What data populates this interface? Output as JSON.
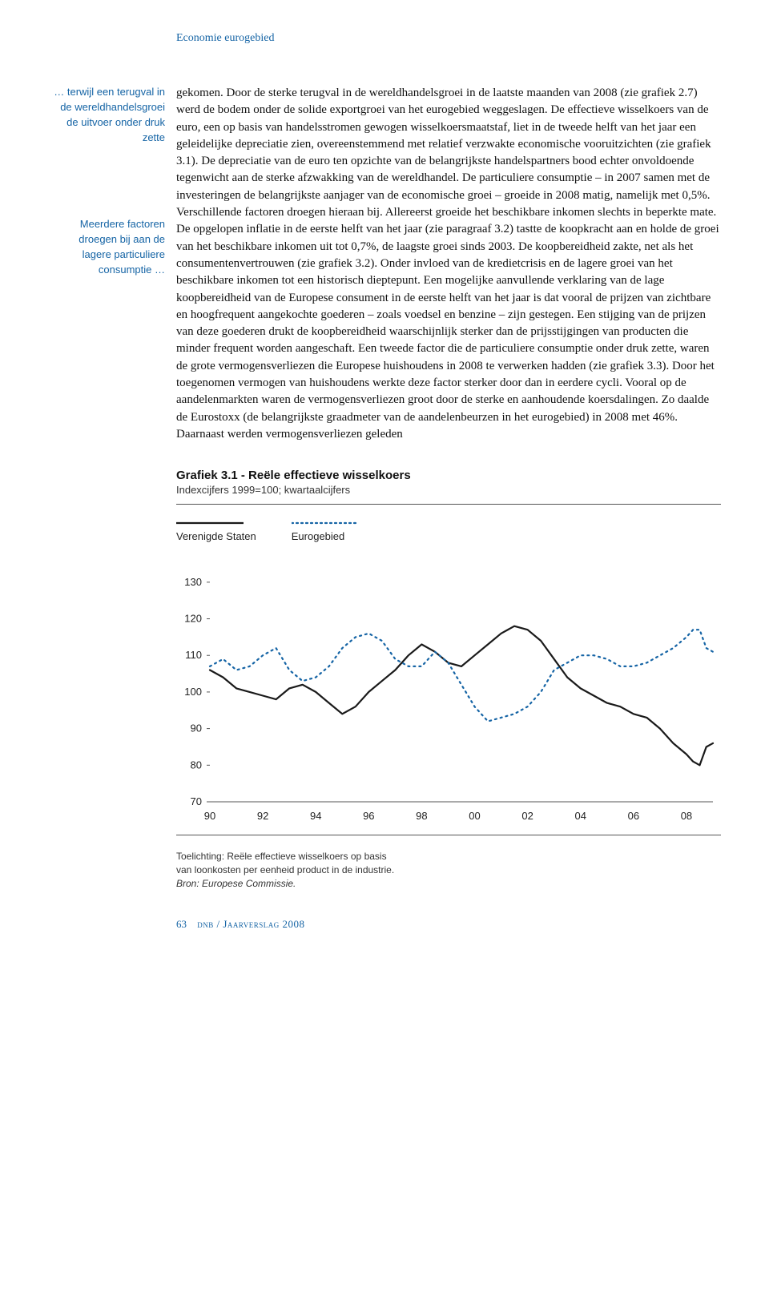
{
  "running_head": "Economie eurogebied",
  "margin": {
    "note1": "… terwijl een terugval in de wereldhandelsgroei de uitvoer onder druk zette",
    "note2": "Meerdere factoren droegen bij aan de lagere particuliere consumptie …"
  },
  "body_text": "gekomen. Door de sterke terugval in de wereldhandelsgroei in de laatste maanden van 2008 (zie grafiek 2.7) werd de bodem onder de solide exportgroei van het eurogebied weggeslagen. De effectieve wisselkoers van de euro, een op basis van handelsstromen gewogen wisselkoersmaatstaf, liet in de tweede helft van het jaar een geleidelijke depreciatie zien, overeenstemmend met relatief verzwakte economische vooruitzichten (zie grafiek 3.1). De depreciatie van de euro ten opzichte van de belangrijkste handelspartners bood echter onvoldoende tegenwicht aan de sterke afzwakking van de wereldhandel. De particuliere consumptie – in 2007 samen met de investeringen de belangrijkste aanjager van de economische groei – groeide in 2008 matig, namelijk met 0,5%. Verschillende factoren droegen hieraan bij. Allereerst groeide het beschikbare inkomen slechts in beperkte mate. De opgelopen inflatie in de eerste helft van het jaar (zie paragraaf 3.2) tastte de koopkracht aan en holde de groei van het beschikbare inkomen uit tot 0,7%, de laagste groei sinds 2003. De koopbereidheid zakte, net als het consumentenvertrouwen (zie grafiek 3.2). Onder invloed van de kredietcrisis en de lagere groei van het beschikbare inkomen tot een historisch dieptepunt. Een mogelijke aanvullende verklaring van de lage koopbereidheid van de Europese consument in de eerste helft van het jaar is dat vooral de prijzen van zichtbare en hoogfrequent aangekochte goederen – zoals voedsel en benzine – zijn gestegen. Een stijging van de prijzen van deze goederen drukt de koopbereidheid waarschijnlijk sterker dan de prijsstijgingen van producten die minder frequent worden aangeschaft. Een tweede factor die de particuliere consumptie onder druk zette, waren de grote vermogensverliezen die Europese huishoudens in 2008 te verwerken hadden (zie grafiek 3.3). Door het toegenomen vermogen van huishoudens werkte deze factor sterker door dan in eerdere cycli. Vooral op de aandelenmarkten waren de vermogensverliezen groot door de sterke en aanhoudende koersdalingen. Zo daalde de Eurostoxx (de belangrijkste graadmeter van de aandelenbeurzen in het eurogebied) in 2008 met 46%. Daarnaast werden vermogensverliezen geleden",
  "chart": {
    "type": "line",
    "title": "Grafiek 3.1 - Reële effectieve wisselkoers",
    "subtitle": "Indexcijfers 1999=100; kwartaalcijfers",
    "x_labels": [
      "90",
      "92",
      "94",
      "96",
      "98",
      "00",
      "02",
      "04",
      "06",
      "08"
    ],
    "y_ticks": [
      70,
      80,
      90,
      100,
      110,
      120,
      130
    ],
    "ylim": [
      70,
      135
    ],
    "xlim": [
      1990,
      2009
    ],
    "label_fontsize": 13,
    "tick_fontsize": 13,
    "background_color": "#ffffff",
    "axis_color": "#555555",
    "series": [
      {
        "name": "Verenigde Staten",
        "style": "solid",
        "color": "#1a1a1a",
        "line_width": 2.2,
        "points": [
          [
            1990.0,
            106
          ],
          [
            1990.5,
            104
          ],
          [
            1991.0,
            101
          ],
          [
            1991.5,
            100
          ],
          [
            1992.0,
            99
          ],
          [
            1992.5,
            98
          ],
          [
            1993.0,
            101
          ],
          [
            1993.5,
            102
          ],
          [
            1994.0,
            100
          ],
          [
            1994.5,
            97
          ],
          [
            1995.0,
            94
          ],
          [
            1995.5,
            96
          ],
          [
            1996.0,
            100
          ],
          [
            1996.5,
            103
          ],
          [
            1997.0,
            106
          ],
          [
            1997.5,
            110
          ],
          [
            1998.0,
            113
          ],
          [
            1998.5,
            111
          ],
          [
            1999.0,
            108
          ],
          [
            1999.5,
            107
          ],
          [
            2000.0,
            110
          ],
          [
            2000.5,
            113
          ],
          [
            2001.0,
            116
          ],
          [
            2001.5,
            118
          ],
          [
            2002.0,
            117
          ],
          [
            2002.5,
            114
          ],
          [
            2003.0,
            109
          ],
          [
            2003.5,
            104
          ],
          [
            2004.0,
            101
          ],
          [
            2004.5,
            99
          ],
          [
            2005.0,
            97
          ],
          [
            2005.5,
            96
          ],
          [
            2006.0,
            94
          ],
          [
            2006.5,
            93
          ],
          [
            2007.0,
            90
          ],
          [
            2007.5,
            86
          ],
          [
            2008.0,
            83
          ],
          [
            2008.25,
            81
          ],
          [
            2008.5,
            80
          ],
          [
            2008.75,
            85
          ],
          [
            2009.0,
            86
          ]
        ]
      },
      {
        "name": "Eurogebied",
        "style": "dotted",
        "color": "#1564a5",
        "line_width": 2.2,
        "points": [
          [
            1990.0,
            107
          ],
          [
            1990.5,
            109
          ],
          [
            1991.0,
            106
          ],
          [
            1991.5,
            107
          ],
          [
            1992.0,
            110
          ],
          [
            1992.5,
            112
          ],
          [
            1993.0,
            106
          ],
          [
            1993.5,
            103
          ],
          [
            1994.0,
            104
          ],
          [
            1994.5,
            107
          ],
          [
            1995.0,
            112
          ],
          [
            1995.5,
            115
          ],
          [
            1996.0,
            116
          ],
          [
            1996.5,
            114
          ],
          [
            1997.0,
            109
          ],
          [
            1997.5,
            107
          ],
          [
            1998.0,
            107
          ],
          [
            1998.5,
            111
          ],
          [
            1999.0,
            108
          ],
          [
            1999.5,
            102
          ],
          [
            2000.0,
            96
          ],
          [
            2000.5,
            92
          ],
          [
            2001.0,
            93
          ],
          [
            2001.5,
            94
          ],
          [
            2002.0,
            96
          ],
          [
            2002.5,
            100
          ],
          [
            2003.0,
            106
          ],
          [
            2003.5,
            108
          ],
          [
            2004.0,
            110
          ],
          [
            2004.5,
            110
          ],
          [
            2005.0,
            109
          ],
          [
            2005.5,
            107
          ],
          [
            2006.0,
            107
          ],
          [
            2006.5,
            108
          ],
          [
            2007.0,
            110
          ],
          [
            2007.5,
            112
          ],
          [
            2008.0,
            115
          ],
          [
            2008.25,
            117
          ],
          [
            2008.5,
            117
          ],
          [
            2008.75,
            112
          ],
          [
            2009.0,
            111
          ]
        ]
      }
    ],
    "note_line1": "Toelichting: Reële effectieve wisselkoers op basis",
    "note_line2": "van loonkosten per eenheid product in de industrie.",
    "note_line3": "Bron: Europese Commissie."
  },
  "footer": {
    "page_no": "63",
    "text": "dnb / Jaarverslag 2008"
  }
}
